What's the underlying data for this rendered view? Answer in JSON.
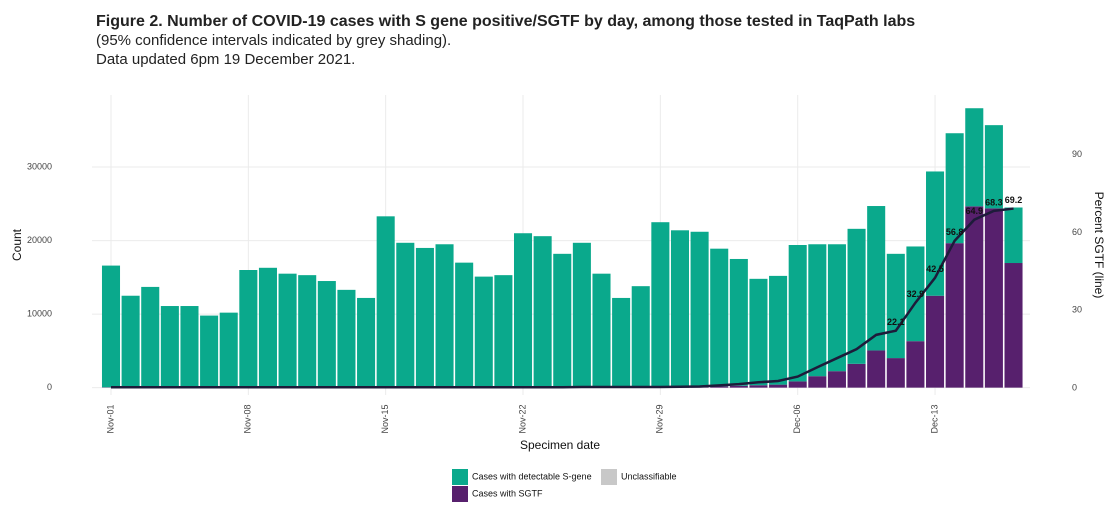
{
  "chart_data": {
    "type": "bar",
    "title": "Figure 2. Number of COVID-19 cases with S gene positive/SGTF by day, among those tested in TaqPath labs",
    "subtitle": [
      "(95% confidence intervals indicated by grey shading).",
      "Data updated 6pm 19 December 2021."
    ],
    "x_label": "Specimen date",
    "y_label": "Count",
    "y2_label": "Percent SGTF (line)",
    "categories": [
      "Nov-01",
      null,
      null,
      null,
      null,
      null,
      null,
      "Nov-08",
      null,
      null,
      null,
      null,
      null,
      null,
      "Nov-15",
      null,
      null,
      null,
      null,
      null,
      null,
      "Nov-22",
      null,
      null,
      null,
      null,
      null,
      null,
      "Nov-29",
      null,
      null,
      null,
      null,
      null,
      null,
      "Dec-06",
      null,
      null,
      null,
      null,
      null,
      null,
      "Dec-13",
      null,
      null,
      null,
      null
    ],
    "series": [
      {
        "name": "Cases with SGTF",
        "color": "#57206d",
        "values": [
          50,
          40,
          40,
          30,
          30,
          30,
          30,
          50,
          50,
          50,
          50,
          40,
          40,
          40,
          70,
          60,
          60,
          60,
          50,
          50,
          50,
          70,
          70,
          60,
          70,
          60,
          50,
          60,
          90,
          110,
          120,
          190,
          260,
          330,
          410,
          850,
          1560,
          2240,
          3240,
          5060,
          4020,
          6320,
          12500,
          19650,
          24660,
          24380,
          16950
        ]
      },
      {
        "name": "Cases with detectable S-gene",
        "color": "#0aa98c",
        "values": [
          16550,
          12460,
          13660,
          11070,
          11070,
          9770,
          10170,
          15950,
          16250,
          15450,
          15250,
          14460,
          13260,
          12160,
          23230,
          19640,
          18940,
          19440,
          16950,
          15050,
          15250,
          20930,
          20530,
          18140,
          19630,
          15440,
          12150,
          13740,
          22410,
          21290,
          21080,
          18710,
          17240,
          14470,
          14790,
          18550,
          17940,
          17260,
          18360,
          19640,
          14180,
          12880,
          16900,
          14950,
          13340,
          11320,
          7550
        ]
      },
      {
        "name": "Unclassifiable",
        "color": "#c8c8c8",
        "values": [
          0,
          0,
          0,
          0,
          0,
          0,
          0,
          0,
          0,
          0,
          0,
          0,
          0,
          0,
          0,
          0,
          0,
          0,
          0,
          0,
          0,
          0,
          0,
          0,
          0,
          0,
          0,
          0,
          0,
          0,
          0,
          0,
          0,
          0,
          0,
          0,
          0,
          0,
          0,
          0,
          0,
          0,
          0,
          0,
          0,
          0,
          0
        ]
      }
    ],
    "line": {
      "color": "#1d1b3a",
      "axis": "y2",
      "values": [
        0.3,
        0.3,
        0.3,
        0.3,
        0.3,
        0.3,
        0.3,
        0.3,
        0.3,
        0.3,
        0.3,
        0.3,
        0.3,
        0.3,
        0.3,
        0.3,
        0.3,
        0.3,
        0.3,
        0.3,
        0.3,
        0.3,
        0.3,
        0.3,
        0.4,
        0.4,
        0.4,
        0.4,
        0.4,
        0.5,
        0.6,
        1.0,
        1.5,
        2.2,
        2.7,
        4.4,
        8.0,
        11.5,
        15.0,
        20.5,
        22.1,
        32.9,
        42.5,
        56.8,
        64.9,
        68.3,
        69.2
      ],
      "value_labels": [
        null,
        null,
        null,
        null,
        null,
        null,
        null,
        null,
        null,
        null,
        null,
        null,
        null,
        null,
        null,
        null,
        null,
        null,
        null,
        null,
        null,
        null,
        null,
        null,
        null,
        null,
        null,
        null,
        null,
        null,
        null,
        null,
        null,
        null,
        null,
        null,
        null,
        null,
        null,
        null,
        "22.1",
        "32.9",
        "42.5",
        "56.8",
        "64.9",
        "68.3",
        "69.2"
      ]
    },
    "ylim": [
      -1000,
      39800
    ],
    "yticks": [
      0,
      10000,
      20000,
      30000
    ],
    "y2lim": [
      -2.7,
      113
    ],
    "y2ticks": [
      0,
      30,
      60,
      90
    ],
    "grid": true
  }
}
